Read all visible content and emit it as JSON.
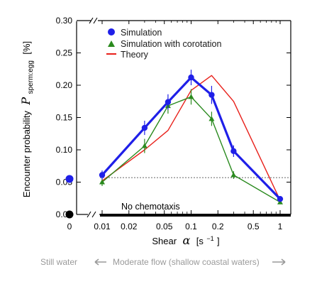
{
  "chart_data": {
    "type": "line",
    "ylabel_main": "Encounter probability",
    "ylabel_symbol": "P",
    "ylabel_subscript": "sperm:egg",
    "ylabel_unit": "[%]",
    "xlabel_main": "Shear",
    "xlabel_symbol": "α",
    "xlabel_unit_open": "[s",
    "xlabel_unit_exp": "−1",
    "xlabel_unit_close": "]",
    "ylim": [
      0,
      0.3
    ],
    "y_ticks": [
      0.0,
      0.05,
      0.1,
      0.15,
      0.2,
      0.25,
      0.3
    ],
    "y_tick_labels": [
      "0.00",
      "0.05",
      "0.10",
      "0.15",
      "0.20",
      "0.25",
      "0.30"
    ],
    "xscale": "log",
    "xlim": [
      0.007,
      1.3
    ],
    "x_ticks": [
      0.01,
      0.02,
      0.05,
      0.1,
      0.2,
      0.5,
      1
    ],
    "x_tick_labels": [
      "0.01",
      "0.02",
      "0.05",
      "0.1",
      "0.2",
      "0.5",
      "1"
    ],
    "still_water_tick_label": "0",
    "series": [
      {
        "name": "Simulation",
        "color": "#1f1fe8",
        "x": [
          0.01,
          0.03,
          0.055,
          0.1,
          0.17,
          0.3,
          1
        ],
        "y": [
          0.061,
          0.134,
          0.174,
          0.212,
          0.185,
          0.098,
          0.024
        ],
        "err": [
          0.007,
          0.011,
          0.012,
          0.012,
          0.014,
          0.009,
          0.003
        ]
      },
      {
        "name": "Simulation with corotation",
        "color": "#2a8a1e",
        "x": [
          0.01,
          0.03,
          0.055,
          0.1,
          0.17,
          0.3,
          1
        ],
        "y": [
          0.05,
          0.106,
          0.168,
          0.182,
          0.148,
          0.061,
          0.019
        ],
        "err": [
          0.006,
          0.011,
          0.012,
          0.012,
          0.011,
          0.006,
          0.003
        ]
      },
      {
        "name": "Theory",
        "color": "#e8201a",
        "x": [
          0.01,
          0.03,
          0.055,
          0.1,
          0.17,
          0.3,
          1
        ],
        "y": [
          0.052,
          0.1,
          0.13,
          0.192,
          0.215,
          0.175,
          0.022
        ]
      }
    ],
    "still_water_points": [
      {
        "x": "0",
        "y": 0.055,
        "color": "#1f1fe8"
      },
      {
        "x": "0",
        "y": 0.0,
        "color": "#000000"
      }
    ],
    "reference_line_y": 0.057,
    "annotation": "No chemotaxis",
    "footer": {
      "left": "Still water",
      "right": "Moderate flow (shallow coastal waters)"
    }
  }
}
